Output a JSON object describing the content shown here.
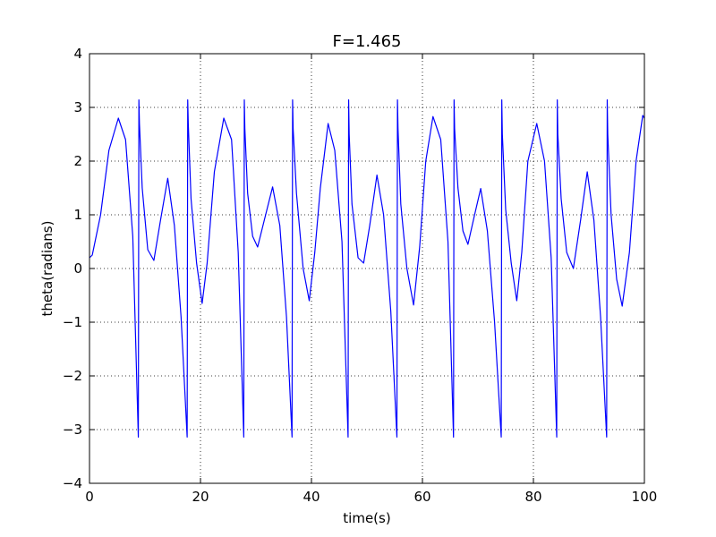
{
  "chart_data": {
    "type": "line",
    "title": "F=1.465",
    "xlabel": "time(s)",
    "ylabel": "theta(radians)",
    "xlim": [
      0,
      100
    ],
    "ylim": [
      -4,
      4
    ],
    "xticks": [
      0,
      20,
      40,
      60,
      80,
      100
    ],
    "yticks": [
      -4,
      -3,
      -2,
      -1,
      0,
      1,
      2,
      3,
      4
    ],
    "xtick_labels": [
      "0",
      "20",
      "40",
      "60",
      "80",
      "100"
    ],
    "ytick_labels": [
      "−4",
      "−3",
      "−2",
      "−1",
      "0",
      "1",
      "2",
      "3",
      "4"
    ],
    "grid": true,
    "grid_style": "dotted",
    "series": [
      {
        "color": "#0000ff",
        "x": [
          0,
          0.5,
          2,
          3.5,
          5.2,
          6.5,
          7.8,
          8.8,
          8.9,
          9.0,
          9.5,
          10.5,
          11.6,
          12.8,
          14.1,
          15.3,
          16.5,
          17.6,
          17.7,
          17.8,
          18.3,
          19.3,
          20.3,
          21.2,
          22.5,
          24.2,
          25.6,
          26.8,
          27.8,
          27.9,
          28.0,
          28.5,
          29.4,
          30.3,
          31.5,
          33.0,
          34.3,
          35.5,
          36.5,
          36.6,
          36.7,
          37.3,
          38.5,
          39.6,
          40.6,
          41.6,
          43.0,
          44.2,
          45.5,
          46.6,
          46.7,
          46.8,
          47.3,
          48.4,
          49.4,
          50.5,
          51.8,
          53.0,
          54.3,
          55.4,
          55.5,
          55.6,
          56.1,
          57.2,
          58.4,
          59.5,
          60.6,
          61.9,
          63.3,
          64.6,
          65.6,
          65.7,
          65.8,
          66.4,
          67.3,
          68.2,
          69.4,
          70.5,
          71.7,
          73.0,
          74.2,
          74.3,
          74.4,
          75.0,
          76.0,
          77.0,
          77.9,
          79.0,
          80.6,
          82.0,
          83.2,
          84.2,
          84.3,
          84.4,
          85.0,
          86.0,
          87.2,
          88.5,
          89.7,
          90.9,
          92.1,
          93.2,
          93.3,
          93.4,
          94.0,
          95.0,
          96.0,
          97.3,
          98.5,
          99.7,
          100
        ],
        "y": [
          0.2,
          0.25,
          1.0,
          2.2,
          2.8,
          2.4,
          0.6,
          -3.14,
          3.14,
          2.7,
          1.5,
          0.35,
          0.15,
          0.9,
          1.68,
          0.8,
          -0.9,
          -3.14,
          3.14,
          2.7,
          1.3,
          0.1,
          -0.65,
          0.1,
          1.8,
          2.8,
          2.4,
          0.3,
          -3.14,
          3.14,
          2.6,
          1.4,
          0.6,
          0.4,
          0.9,
          1.52,
          0.8,
          -0.9,
          -3.14,
          3.14,
          2.6,
          1.4,
          0.0,
          -0.6,
          0.3,
          1.5,
          2.7,
          2.2,
          0.5,
          -3.14,
          3.14,
          2.5,
          1.2,
          0.2,
          0.1,
          0.8,
          1.74,
          1.0,
          -0.8,
          -3.14,
          3.14,
          2.6,
          1.2,
          0.0,
          -0.68,
          0.4,
          2.0,
          2.83,
          2.4,
          0.5,
          -3.14,
          3.14,
          2.6,
          1.5,
          0.7,
          0.45,
          1.0,
          1.49,
          0.7,
          -1.0,
          -3.14,
          3.14,
          2.5,
          1.1,
          0.1,
          -0.6,
          0.3,
          2.0,
          2.7,
          2.0,
          0.2,
          -3.14,
          3.14,
          2.5,
          1.3,
          0.3,
          0.0,
          0.9,
          1.8,
          0.9,
          -0.9,
          -3.14,
          3.14,
          2.5,
          1.0,
          -0.2,
          -0.7,
          0.3,
          2.0,
          2.85,
          2.8
        ]
      }
    ]
  }
}
